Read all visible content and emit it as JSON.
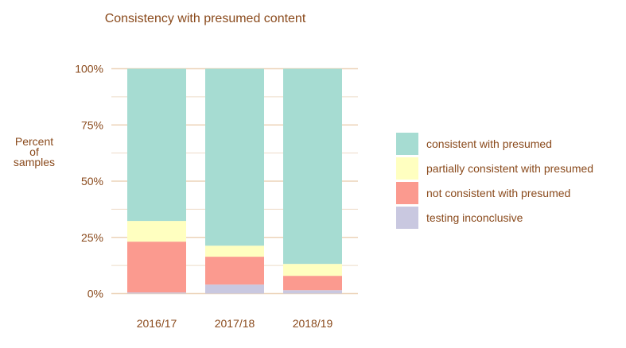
{
  "chart_data": {
    "type": "bar",
    "stacked": true,
    "title": "Consistency with presumed content",
    "xlabel": "",
    "ylabel": [
      "Percent",
      "of",
      "samples"
    ],
    "ylim": [
      0,
      100
    ],
    "yticks": [
      0,
      25,
      50,
      75,
      100
    ],
    "ytick_labels": [
      "0%",
      "25%",
      "50%",
      "75%",
      "100%"
    ],
    "grid": true,
    "legend_position": "right",
    "categories": [
      "2016/17",
      "2017/18",
      "2018/19"
    ],
    "series": [
      {
        "name": "testing inconclusive",
        "color": "#c9c8e0",
        "values": [
          0.5,
          4.0,
          1.5
        ]
      },
      {
        "name": "not consistent with presumed",
        "color": "#fb9a8f",
        "values": [
          22.6,
          12.4,
          6.4
        ]
      },
      {
        "name": "partially consistent with presumed",
        "color": "#ffffc0",
        "values": [
          9.2,
          4.9,
          5.3
        ]
      },
      {
        "name": "consistent with presumed",
        "color": "#a6dcd2",
        "values": [
          67.7,
          78.7,
          86.8
        ]
      }
    ]
  }
}
